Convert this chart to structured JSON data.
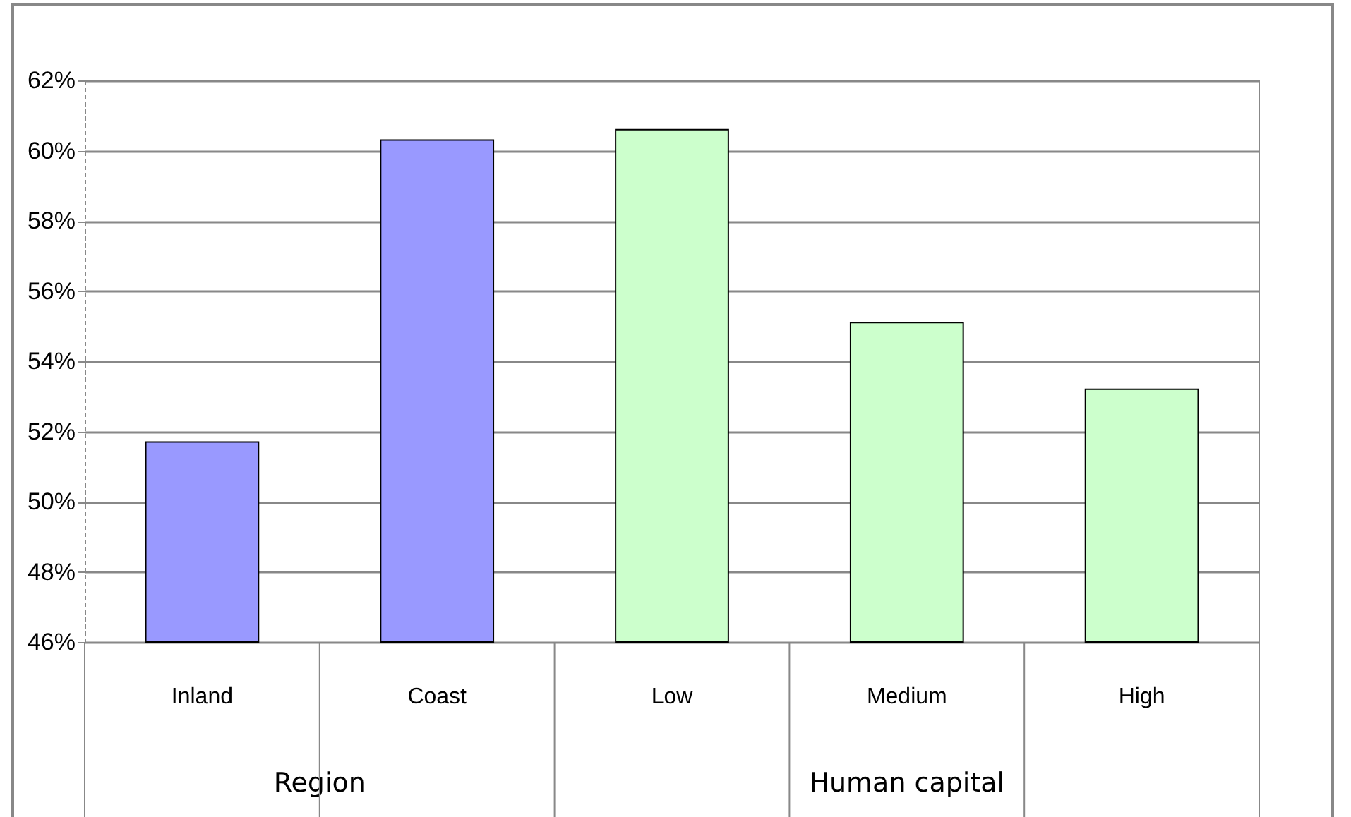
{
  "chart_data": {
    "type": "bar",
    "categories": [
      "Inland",
      "Coast",
      "Low",
      "Medium",
      "High"
    ],
    "values": [
      51.7,
      60.3,
      60.6,
      55.1,
      53.2
    ],
    "colors": [
      "#9999ff",
      "#9999ff",
      "#ccffcc",
      "#ccffcc",
      "#ccffcc"
    ],
    "annotations": [
      "Region",
      "Human capital"
    ],
    "ylim": [
      46,
      62
    ],
    "yticks": [
      {
        "value": 46,
        "label": "46%"
      },
      {
        "value": 48,
        "label": "48%"
      },
      {
        "value": 50,
        "label": "50%"
      },
      {
        "value": 52,
        "label": "52%"
      },
      {
        "value": 54,
        "label": "54%"
      },
      {
        "value": 56,
        "label": "56%"
      },
      {
        "value": 58,
        "label": "58%"
      },
      {
        "value": 60,
        "label": "60%"
      },
      {
        "value": 62,
        "label": "62%"
      }
    ],
    "grid": "y"
  }
}
